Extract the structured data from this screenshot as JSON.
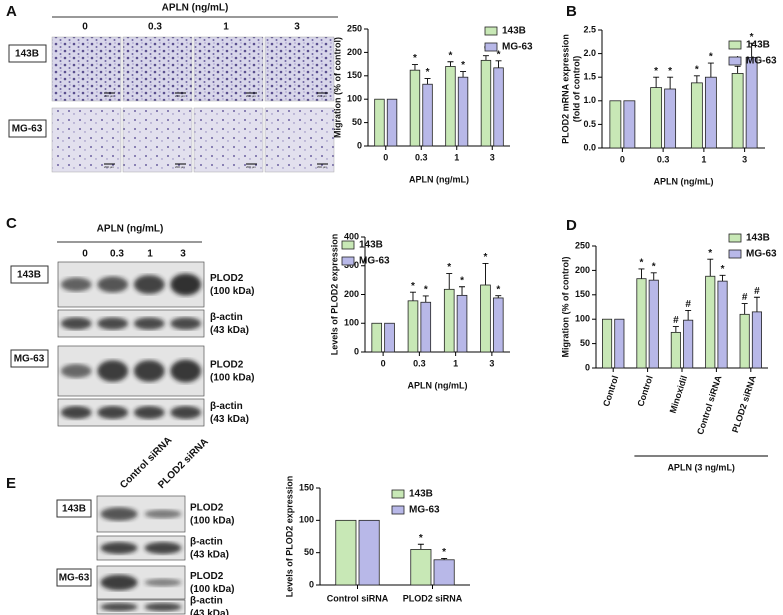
{
  "figure": {
    "A": {
      "label": "A",
      "title": "APLN (ng/mL)",
      "doses": [
        "0",
        "0.3",
        "1",
        "3"
      ],
      "cell_lines": [
        "143B",
        "MG-63"
      ],
      "scale_bar": "200 μm"
    },
    "B": {
      "label": "B"
    },
    "C": {
      "label": "C",
      "title": "APLN (ng/mL)",
      "doses": [
        "0",
        "0.3",
        "1",
        "3"
      ],
      "cell_lines": [
        "143B",
        "MG-63"
      ],
      "bands": [
        {
          "protein": "PLOD2",
          "size": "(100 kDa)"
        },
        {
          "protein": "β-actin",
          "size": "(43 kDa)"
        }
      ]
    },
    "D": {
      "label": "D"
    },
    "E": {
      "label": "E",
      "lanes": [
        "Control siRNA",
        "PLOD2 siRNA"
      ],
      "cell_lines": [
        "143B",
        "MG-63"
      ],
      "bands": [
        {
          "protein": "PLOD2",
          "size": "(100 kDa)"
        },
        {
          "protein": "β-actin",
          "size": "(43 kDa)"
        }
      ]
    }
  },
  "chart_data": [
    {
      "type": "bar",
      "ylabel": "Migration (% of control)",
      "xlabel": "APLN (ng/mL)",
      "categories": [
        "0",
        "0.3",
        "1",
        "3"
      ],
      "ylim": [
        0,
        250
      ],
      "yticks": [
        0,
        50,
        100,
        150,
        200,
        250
      ],
      "series": [
        {
          "name": "143B",
          "color": "#c8e8b6",
          "values": [
            100,
            162,
            170,
            183
          ],
          "errors": [
            null,
            12,
            10,
            10
          ],
          "labels": [
            null,
            "*",
            "*",
            "*"
          ]
        },
        {
          "name": "MG-63",
          "color": "#b8b8e8",
          "values": [
            100,
            132,
            147,
            167
          ],
          "errors": [
            null,
            12,
            12,
            15
          ],
          "labels": [
            null,
            "*",
            "*",
            "*"
          ]
        }
      ]
    },
    {
      "type": "bar",
      "ylabel": "PLOD2 mRNA expression",
      "ylabel2": "(fold of control)",
      "xlabel": "APLN (ng/mL)",
      "categories": [
        "0",
        "0.3",
        "1",
        "3"
      ],
      "ylim": [
        0,
        2.5
      ],
      "yticks": [
        {
          "value": 0,
          "label": "0.0"
        },
        {
          "value": 0.5,
          "label": "0.5"
        },
        {
          "value": 1,
          "label": "1.0"
        },
        {
          "value": 1.5,
          "label": "1.5"
        },
        {
          "value": 2,
          "label": "2.0"
        },
        {
          "value": 2.5,
          "label": "2.5"
        }
      ],
      "series": [
        {
          "name": "143B",
          "color": "#c8e8b6",
          "values": [
            1,
            1.28,
            1.38,
            1.58
          ],
          "errors": [
            null,
            0.22,
            0.15,
            0.15
          ],
          "labels": [
            null,
            "*",
            "*",
            "*"
          ]
        },
        {
          "name": "MG-63",
          "color": "#b8b8e8",
          "values": [
            1,
            1.25,
            1.5,
            1.92
          ],
          "errors": [
            null,
            0.25,
            0.3,
            0.3
          ],
          "labels": [
            null,
            "*",
            "*",
            "*"
          ]
        }
      ]
    },
    {
      "type": "bar",
      "ylabel": "Levels of PLOD2 expression",
      "xlabel": "APLN (ng/mL)",
      "categories": [
        "0",
        "0.3",
        "1",
        "3"
      ],
      "ylim": [
        0,
        400
      ],
      "yticks": [
        0,
        100,
        200,
        300,
        400
      ],
      "series": [
        {
          "name": "143B",
          "color": "#c8e8b6",
          "values": [
            100,
            178,
            218,
            233
          ],
          "errors": [
            null,
            30,
            55,
            75
          ],
          "labels": [
            null,
            "*",
            "*",
            "*"
          ]
        },
        {
          "name": "MG-63",
          "color": "#b8b8e8",
          "values": [
            100,
            173,
            197,
            188
          ],
          "errors": [
            null,
            22,
            30,
            8
          ],
          "labels": [
            null,
            "*",
            "*",
            "*"
          ]
        }
      ]
    },
    {
      "type": "bar",
      "ylabel": "Migration (% of control)",
      "group_label": "APLN (3 ng/mL)",
      "categories": [
        "Control",
        "Control",
        "Minoxidil",
        "Control siRNA",
        "PLOD2 siRNA"
      ],
      "ylim": [
        0,
        250
      ],
      "yticks": [
        0,
        50,
        100,
        150,
        200,
        250
      ],
      "series": [
        {
          "name": "143B",
          "color": "#c8e8b6",
          "values": [
            100,
            183,
            73,
            188,
            110
          ],
          "errors": [
            null,
            20,
            12,
            35,
            22
          ],
          "labels": [
            null,
            "*",
            "#",
            "*",
            "#"
          ]
        },
        {
          "name": "MG-63",
          "color": "#b8b8e8",
          "values": [
            100,
            180,
            98,
            178,
            115
          ],
          "errors": [
            null,
            15,
            20,
            12,
            30
          ],
          "labels": [
            null,
            "*",
            "#",
            "*",
            "#"
          ]
        }
      ]
    },
    {
      "type": "bar",
      "ylabel": "Levels of PLOD2 expression",
      "categories": [
        "Control siRNA",
        "PLOD2 siRNA"
      ],
      "ylim": [
        0,
        150
      ],
      "yticks": [
        0,
        50,
        100,
        150
      ],
      "series": [
        {
          "name": "143B",
          "color": "#c8e8b6",
          "values": [
            100,
            55
          ],
          "errors": [
            null,
            8
          ],
          "labels": [
            null,
            "*"
          ]
        },
        {
          "name": "MG-63",
          "color": "#b8b8e8",
          "values": [
            100,
            39
          ],
          "errors": [
            null,
            2
          ],
          "labels": [
            null,
            "*"
          ]
        }
      ]
    }
  ]
}
